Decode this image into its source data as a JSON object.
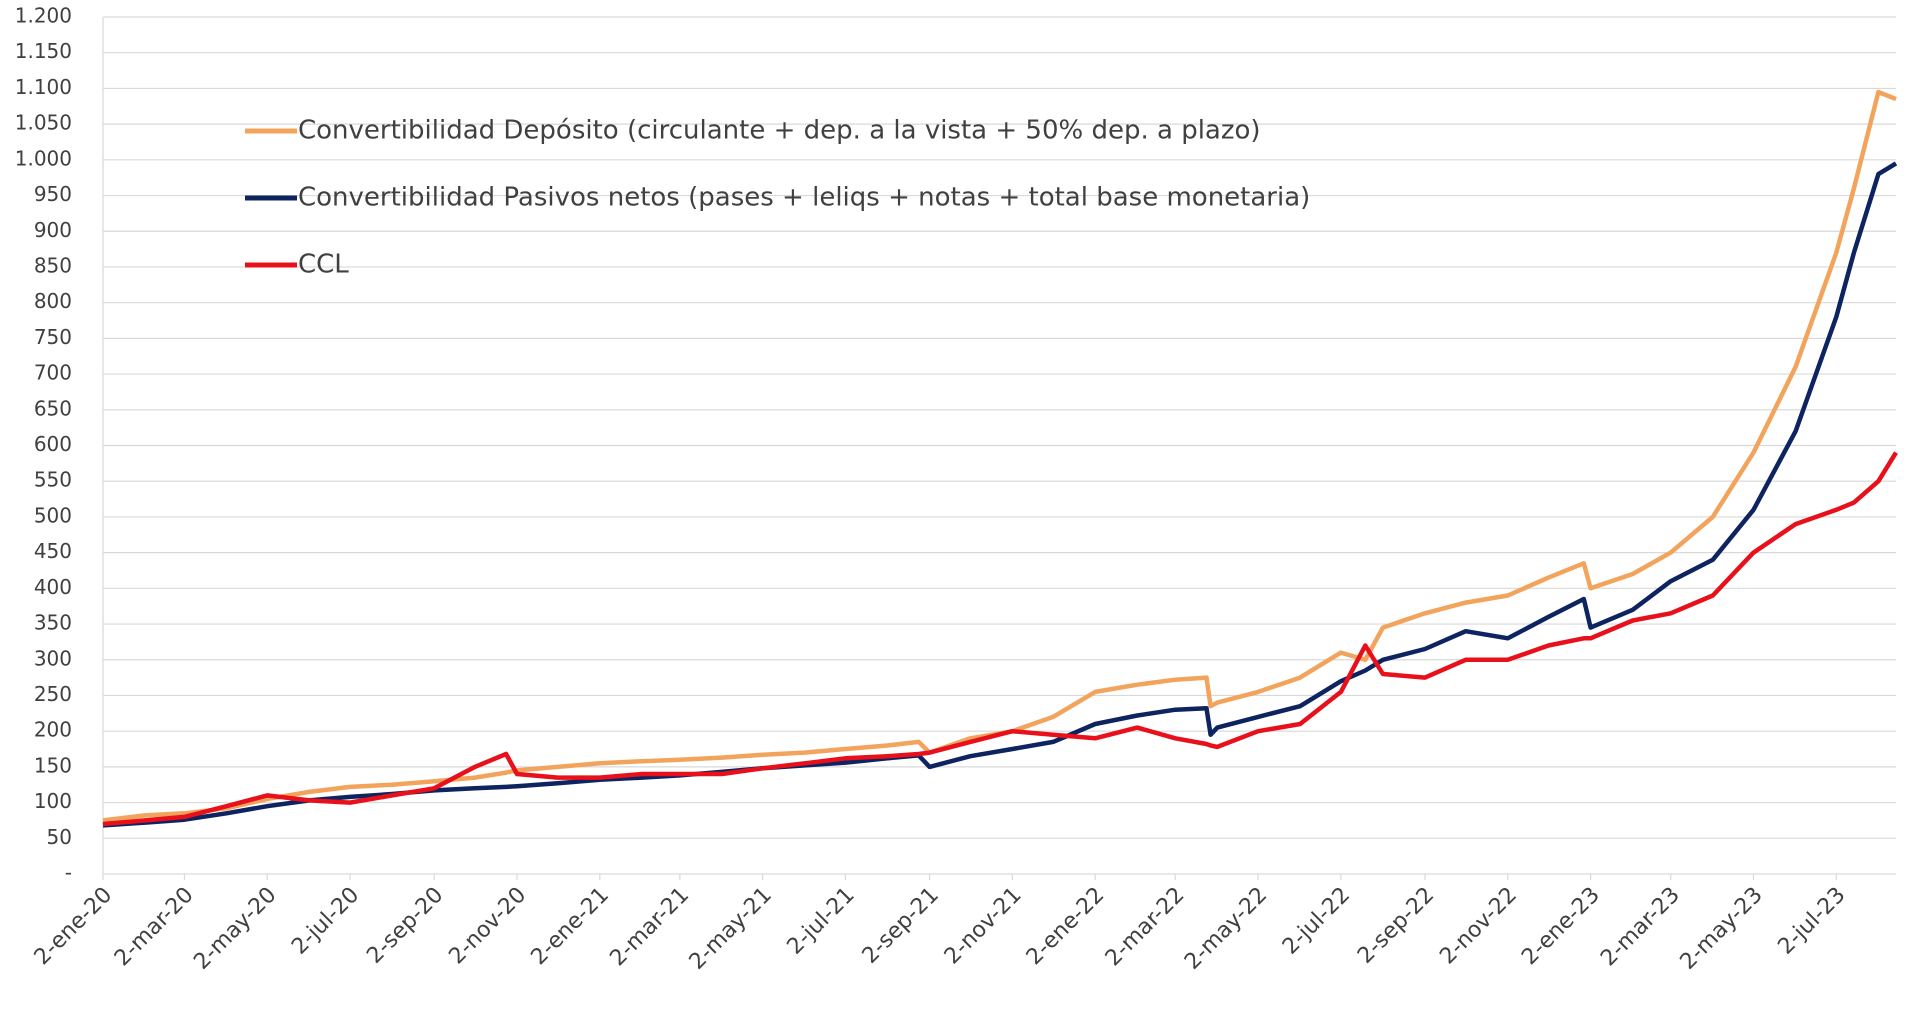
{
  "chart_data": {
    "type": "line",
    "x": [
      "2020-01-02",
      "2020-02-02",
      "2020-03-02",
      "2020-04-02",
      "2020-05-02",
      "2020-06-02",
      "2020-07-02",
      "2020-08-02",
      "2020-09-02",
      "2020-10-02",
      "2020-10-25",
      "2020-11-02",
      "2020-12-02",
      "2021-01-02",
      "2021-02-02",
      "2021-03-02",
      "2021-04-02",
      "2021-05-02",
      "2021-06-02",
      "2021-07-02",
      "2021-08-02",
      "2021-08-25",
      "2021-09-02",
      "2021-10-02",
      "2021-11-02",
      "2021-12-02",
      "2022-01-02",
      "2022-02-02",
      "2022-03-02",
      "2022-03-25",
      "2022-03-28",
      "2022-04-02",
      "2022-05-02",
      "2022-06-02",
      "2022-07-02",
      "2022-07-20",
      "2022-08-02",
      "2022-09-02",
      "2022-10-02",
      "2022-11-02",
      "2022-12-02",
      "2022-12-28",
      "2023-01-02",
      "2023-02-02",
      "2023-03-02",
      "2023-04-02",
      "2023-05-02",
      "2023-06-02",
      "2023-07-02",
      "2023-07-15",
      "2023-08-02",
      "2023-08-15"
    ],
    "series": [
      {
        "name": "Convertibilidad Depósito (circulante + dep. a la vista + 50% dep. a plazo)",
        "color": "#f2a45c",
        "values": [
          75,
          82,
          85,
          92,
          105,
          115,
          122,
          125,
          130,
          135,
          142,
          145,
          150,
          155,
          158,
          160,
          163,
          167,
          170,
          175,
          180,
          185,
          170,
          190,
          200,
          220,
          255,
          265,
          272,
          275,
          235,
          240,
          255,
          275,
          310,
          300,
          345,
          365,
          380,
          390,
          415,
          435,
          400,
          420,
          450,
          500,
          590,
          710,
          870,
          960,
          1095,
          1085
        ]
      },
      {
        "name": "Convertibilidad Pasivos netos (pases + leliqs + notas + total base monetaria)",
        "color": "#0e2461",
        "values": [
          68,
          72,
          76,
          85,
          95,
          103,
          108,
          112,
          117,
          120,
          122,
          123,
          127,
          132,
          135,
          138,
          143,
          148,
          152,
          156,
          162,
          166,
          150,
          165,
          175,
          185,
          210,
          222,
          230,
          232,
          195,
          205,
          220,
          235,
          270,
          285,
          300,
          315,
          340,
          330,
          360,
          385,
          345,
          370,
          410,
          440,
          510,
          620,
          780,
          870,
          980,
          995
        ]
      },
      {
        "name": "CCL",
        "color": "#e8101a",
        "values": [
          70,
          75,
          80,
          95,
          110,
          103,
          100,
          110,
          120,
          150,
          168,
          140,
          135,
          135,
          140,
          140,
          140,
          148,
          155,
          162,
          165,
          168,
          170,
          185,
          200,
          195,
          190,
          205,
          190,
          182,
          180,
          178,
          200,
          210,
          255,
          320,
          280,
          275,
          300,
          300,
          320,
          330,
          330,
          355,
          365,
          390,
          450,
          490,
          510,
          520,
          550,
          590
        ]
      }
    ],
    "xticks": [
      {
        "value": "2020-01-02",
        "label": "2-ene-20"
      },
      {
        "value": "2020-03-02",
        "label": "2-mar-20"
      },
      {
        "value": "2020-05-02",
        "label": "2-may-20"
      },
      {
        "value": "2020-07-02",
        "label": "2-jul-20"
      },
      {
        "value": "2020-09-02",
        "label": "2-sep-20"
      },
      {
        "value": "2020-11-02",
        "label": "2-nov-20"
      },
      {
        "value": "2021-01-02",
        "label": "2-ene-21"
      },
      {
        "value": "2021-03-02",
        "label": "2-mar-21"
      },
      {
        "value": "2021-05-02",
        "label": "2-may-21"
      },
      {
        "value": "2021-07-02",
        "label": "2-jul-21"
      },
      {
        "value": "2021-09-02",
        "label": "2-sep-21"
      },
      {
        "value": "2021-11-02",
        "label": "2-nov-21"
      },
      {
        "value": "2022-01-02",
        "label": "2-ene-22"
      },
      {
        "value": "2022-03-02",
        "label": "2-mar-22"
      },
      {
        "value": "2022-05-02",
        "label": "2-may-22"
      },
      {
        "value": "2022-07-02",
        "label": "2-jul-22"
      },
      {
        "value": "2022-09-02",
        "label": "2-sep-22"
      },
      {
        "value": "2022-11-02",
        "label": "2-nov-22"
      },
      {
        "value": "2023-01-02",
        "label": "2-ene-23"
      },
      {
        "value": "2023-03-02",
        "label": "2-mar-23"
      },
      {
        "value": "2023-05-02",
        "label": "2-may-23"
      },
      {
        "value": "2023-07-02",
        "label": "2-jul-23"
      }
    ],
    "xlim": [
      "2020-01-02",
      "2023-08-15"
    ],
    "ylim": [
      0,
      1200
    ],
    "yticks": [
      {
        "value": 0,
        "label": "-"
      },
      50,
      100,
      150,
      200,
      250,
      300,
      350,
      400,
      450,
      500,
      550,
      600,
      650,
      700,
      750,
      800,
      850,
      900,
      950,
      {
        "value": 1000,
        "label": "1.000"
      },
      {
        "value": 1050,
        "label": "1.050"
      },
      {
        "value": 1100,
        "label": "1.100"
      },
      {
        "value": 1150,
        "label": "1.150"
      },
      {
        "value": 1200,
        "label": "1.200"
      }
    ],
    "grid": true,
    "legend": "upper left"
  }
}
